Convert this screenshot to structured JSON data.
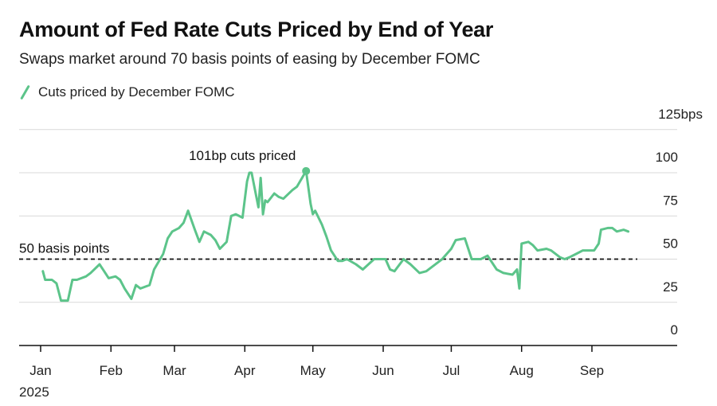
{
  "header": {
    "title": "Amount of Fed Rate Cuts Priced by End of Year",
    "subtitle": "Swaps market around 70 basis points of easing by December FOMC"
  },
  "colors": {
    "series": "#5cc48a",
    "grid": "#d9d9d9",
    "axis": "#111111",
    "reference": "#111111"
  },
  "chart_data": {
    "type": "line",
    "title": "Amount of Fed Rate Cuts Priced by End of Year",
    "subtitle": "Swaps market around 70 basis points of easing by December FOMC",
    "y_unit": "bps",
    "ylim": [
      0,
      125
    ],
    "y_ticks": [
      0,
      25,
      50,
      75,
      100,
      125
    ],
    "y_tick_labels": [
      "0",
      "25",
      "50",
      "75",
      "100",
      "125bps"
    ],
    "x_tick_labels": [
      "Jan",
      "Feb",
      "Mar",
      "Apr",
      "May",
      "Jun",
      "Jul",
      "Aug",
      "Sep"
    ],
    "x_year_label": "2025",
    "grid": "horizontal",
    "legend_position": "top-left",
    "series": [
      {
        "name": "Cuts priced by December FOMC",
        "x": [
          "2025-01-02",
          "2025-01-03",
          "2025-01-06",
          "2025-01-08",
          "2025-01-10",
          "2025-01-13",
          "2025-01-15",
          "2025-01-16",
          "2025-01-17",
          "2025-01-21",
          "2025-01-23",
          "2025-01-27",
          "2025-01-29",
          "2025-01-31",
          "2025-02-03",
          "2025-02-05",
          "2025-02-07",
          "2025-02-10",
          "2025-02-12",
          "2025-02-14",
          "2025-02-18",
          "2025-02-20",
          "2025-02-24",
          "2025-02-26",
          "2025-02-28",
          "2025-03-03",
          "2025-03-05",
          "2025-03-07",
          "2025-03-10",
          "2025-03-12",
          "2025-03-14",
          "2025-03-17",
          "2025-03-19",
          "2025-03-21",
          "2025-03-24",
          "2025-03-26",
          "2025-03-28",
          "2025-03-31",
          "2025-04-02",
          "2025-04-03",
          "2025-04-04",
          "2025-04-07",
          "2025-04-08",
          "2025-04-09",
          "2025-04-10",
          "2025-04-11",
          "2025-04-14",
          "2025-04-16",
          "2025-04-18",
          "2025-04-22",
          "2025-04-24",
          "2025-04-28",
          "2025-04-30",
          "2025-05-01",
          "2025-05-02",
          "2025-05-05",
          "2025-05-07",
          "2025-05-09",
          "2025-05-12",
          "2025-05-14",
          "2025-05-16",
          "2025-05-20",
          "2025-05-23",
          "2025-05-28",
          "2025-06-02",
          "2025-06-04",
          "2025-06-06",
          "2025-06-10",
          "2025-06-13",
          "2025-06-17",
          "2025-06-20",
          "2025-06-25",
          "2025-06-27",
          "2025-07-01",
          "2025-07-03",
          "2025-07-07",
          "2025-07-10",
          "2025-07-14",
          "2025-07-17",
          "2025-07-21",
          "2025-07-24",
          "2025-07-28",
          "2025-07-30",
          "2025-07-31",
          "2025-08-01",
          "2025-08-04",
          "2025-08-06",
          "2025-08-08",
          "2025-08-12",
          "2025-08-14",
          "2025-08-18",
          "2025-08-20",
          "2025-08-22",
          "2025-08-25",
          "2025-08-28",
          "2025-09-02",
          "2025-09-04",
          "2025-09-05",
          "2025-09-08",
          "2025-09-10",
          "2025-09-12",
          "2025-09-15",
          "2025-09-17"
        ],
        "y": [
          43,
          38,
          38,
          36,
          26,
          26,
          38,
          38,
          38,
          40,
          42,
          47,
          43,
          39,
          40,
          38,
          33,
          27,
          35,
          33,
          35,
          44,
          53,
          62,
          66,
          68,
          71,
          78,
          67,
          60,
          66,
          64,
          61,
          56,
          60,
          75,
          76,
          74,
          95,
          100,
          100,
          80,
          97,
          76,
          84,
          83,
          88,
          86,
          85,
          90,
          92,
          101,
          82,
          76,
          78,
          70,
          63,
          55,
          49,
          49,
          50,
          47,
          44,
          50,
          50,
          44,
          43,
          50,
          47,
          42,
          43,
          48,
          50,
          56,
          61,
          62,
          50,
          50,
          52,
          44,
          42,
          41,
          44,
          33,
          59,
          60,
          58,
          55,
          56,
          55,
          51,
          50,
          51,
          53,
          55,
          55,
          59,
          67,
          68,
          68,
          66,
          67,
          66
        ],
        "color": "#5cc48a"
      }
    ],
    "reference_line": {
      "value": 50,
      "label": "50 basis points",
      "style": "dashed"
    },
    "annotations": [
      {
        "x": "2025-04-28",
        "y": 101,
        "label": "101bp cuts priced"
      }
    ]
  }
}
